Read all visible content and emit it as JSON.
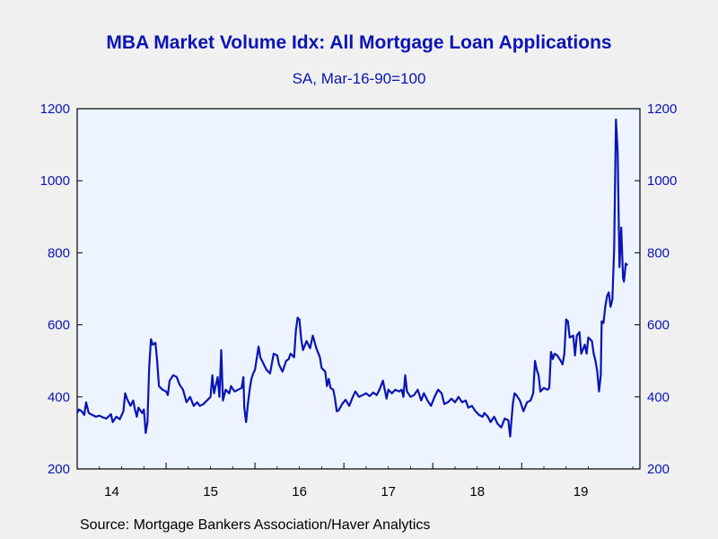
{
  "chart_data": {
    "type": "line",
    "title": "MBA Market Volume Idx: All Mortgage Loan Applications",
    "subtitle": "SA, Mar-16-90=100",
    "source": "Source:  Mortgage Bankers Association/Haver Analytics",
    "ylim": [
      200,
      1200
    ],
    "yticks": [
      200,
      400,
      600,
      800,
      1000,
      1200
    ],
    "ytick_labels": [
      "200",
      "400",
      "600",
      "800",
      "1000",
      "1200"
    ],
    "xlim": [
      2014.0,
      2020.33
    ],
    "year_labels": [
      {
        "label": "14",
        "x": 2014.0
      },
      {
        "label": "15",
        "x": 2015.0
      },
      {
        "label": "16",
        "x": 2016.0
      },
      {
        "label": "17",
        "x": 2017.0
      },
      {
        "label": "18",
        "x": 2018.0
      },
      {
        "label": "19",
        "x": 2019.0
      }
    ],
    "grid": false,
    "line_color": "#0a14b4",
    "series": [
      {
        "values": [
          [
            2014.0,
            355
          ],
          [
            2014.02,
            365
          ],
          [
            2014.05,
            360
          ],
          [
            2014.08,
            350
          ],
          [
            2014.1,
            385
          ],
          [
            2014.13,
            355
          ],
          [
            2014.17,
            350
          ],
          [
            2014.21,
            345
          ],
          [
            2014.25,
            348
          ],
          [
            2014.29,
            343
          ],
          [
            2014.33,
            340
          ],
          [
            2014.38,
            352
          ],
          [
            2014.4,
            330
          ],
          [
            2014.44,
            345
          ],
          [
            2014.48,
            338
          ],
          [
            2014.52,
            360
          ],
          [
            2014.54,
            410
          ],
          [
            2014.56,
            395
          ],
          [
            2014.6,
            375
          ],
          [
            2014.63,
            390
          ],
          [
            2014.65,
            365
          ],
          [
            2014.67,
            345
          ],
          [
            2014.69,
            370
          ],
          [
            2014.73,
            355
          ],
          [
            2014.75,
            365
          ],
          [
            2014.77,
            300
          ],
          [
            2014.79,
            330
          ],
          [
            2014.81,
            480
          ],
          [
            2014.83,
            560
          ],
          [
            2014.85,
            545
          ],
          [
            2014.88,
            550
          ],
          [
            2014.9,
            500
          ],
          [
            2014.92,
            430
          ],
          [
            2014.96,
            420
          ],
          [
            2015.0,
            415
          ],
          [
            2015.02,
            405
          ],
          [
            2015.04,
            445
          ],
          [
            2015.08,
            460
          ],
          [
            2015.12,
            455
          ],
          [
            2015.15,
            435
          ],
          [
            2015.19,
            420
          ],
          [
            2015.23,
            385
          ],
          [
            2015.27,
            400
          ],
          [
            2015.31,
            375
          ],
          [
            2015.35,
            385
          ],
          [
            2015.38,
            375
          ],
          [
            2015.42,
            380
          ],
          [
            2015.46,
            390
          ],
          [
            2015.5,
            400
          ],
          [
            2015.52,
            460
          ],
          [
            2015.54,
            410
          ],
          [
            2015.58,
            455
          ],
          [
            2015.6,
            400
          ],
          [
            2015.62,
            530
          ],
          [
            2015.64,
            390
          ],
          [
            2015.67,
            420
          ],
          [
            2015.71,
            410
          ],
          [
            2015.73,
            430
          ],
          [
            2015.77,
            415
          ],
          [
            2015.81,
            420
          ],
          [
            2015.85,
            425
          ],
          [
            2015.87,
            455
          ],
          [
            2015.88,
            370
          ],
          [
            2015.9,
            330
          ],
          [
            2015.92,
            380
          ],
          [
            2015.94,
            420
          ],
          [
            2015.96,
            450
          ],
          [
            2015.98,
            465
          ],
          [
            2016.0,
            475
          ],
          [
            2016.04,
            540
          ],
          [
            2016.06,
            510
          ],
          [
            2016.1,
            490
          ],
          [
            2016.13,
            475
          ],
          [
            2016.17,
            465
          ],
          [
            2016.21,
            520
          ],
          [
            2016.25,
            515
          ],
          [
            2016.27,
            490
          ],
          [
            2016.31,
            470
          ],
          [
            2016.35,
            500
          ],
          [
            2016.38,
            505
          ],
          [
            2016.4,
            520
          ],
          [
            2016.44,
            510
          ],
          [
            2016.46,
            585
          ],
          [
            2016.48,
            620
          ],
          [
            2016.5,
            615
          ],
          [
            2016.52,
            560
          ],
          [
            2016.54,
            530
          ],
          [
            2016.58,
            555
          ],
          [
            2016.62,
            535
          ],
          [
            2016.65,
            570
          ],
          [
            2016.69,
            535
          ],
          [
            2016.73,
            510
          ],
          [
            2016.75,
            480
          ],
          [
            2016.79,
            470
          ],
          [
            2016.81,
            430
          ],
          [
            2016.83,
            450
          ],
          [
            2016.85,
            425
          ],
          [
            2016.88,
            420
          ],
          [
            2016.9,
            395
          ],
          [
            2016.92,
            360
          ],
          [
            2016.94,
            362
          ],
          [
            2016.98,
            380
          ],
          [
            2017.02,
            392
          ],
          [
            2017.06,
            375
          ],
          [
            2017.1,
            400
          ],
          [
            2017.13,
            415
          ],
          [
            2017.17,
            400
          ],
          [
            2017.21,
            405
          ],
          [
            2017.25,
            410
          ],
          [
            2017.29,
            402
          ],
          [
            2017.33,
            412
          ],
          [
            2017.37,
            405
          ],
          [
            2017.4,
            420
          ],
          [
            2017.44,
            445
          ],
          [
            2017.46,
            420
          ],
          [
            2017.48,
            395
          ],
          [
            2017.5,
            420
          ],
          [
            2017.54,
            410
          ],
          [
            2017.58,
            420
          ],
          [
            2017.62,
            415
          ],
          [
            2017.65,
            420
          ],
          [
            2017.67,
            400
          ],
          [
            2017.69,
            460
          ],
          [
            2017.71,
            415
          ],
          [
            2017.75,
            400
          ],
          [
            2017.79,
            405
          ],
          [
            2017.83,
            420
          ],
          [
            2017.87,
            390
          ],
          [
            2017.9,
            410
          ],
          [
            2017.92,
            400
          ],
          [
            2017.94,
            390
          ],
          [
            2017.98,
            375
          ],
          [
            2018.02,
            400
          ],
          [
            2018.06,
            420
          ],
          [
            2018.1,
            410
          ],
          [
            2018.13,
            380
          ],
          [
            2018.17,
            385
          ],
          [
            2018.21,
            395
          ],
          [
            2018.25,
            385
          ],
          [
            2018.29,
            400
          ],
          [
            2018.33,
            385
          ],
          [
            2018.37,
            390
          ],
          [
            2018.4,
            370
          ],
          [
            2018.44,
            375
          ],
          [
            2018.48,
            360
          ],
          [
            2018.52,
            350
          ],
          [
            2018.56,
            345
          ],
          [
            2018.58,
            355
          ],
          [
            2018.62,
            345
          ],
          [
            2018.65,
            330
          ],
          [
            2018.69,
            345
          ],
          [
            2018.73,
            325
          ],
          [
            2018.77,
            315
          ],
          [
            2018.81,
            340
          ],
          [
            2018.85,
            335
          ],
          [
            2018.87,
            290
          ],
          [
            2018.9,
            380
          ],
          [
            2018.92,
            410
          ],
          [
            2018.94,
            405
          ],
          [
            2018.98,
            390
          ],
          [
            2019.0,
            375
          ],
          [
            2019.02,
            360
          ],
          [
            2019.06,
            385
          ],
          [
            2019.1,
            390
          ],
          [
            2019.13,
            410
          ],
          [
            2019.15,
            500
          ],
          [
            2019.17,
            475
          ],
          [
            2019.19,
            460
          ],
          [
            2019.21,
            415
          ],
          [
            2019.25,
            425
          ],
          [
            2019.29,
            420
          ],
          [
            2019.31,
            425
          ],
          [
            2019.33,
            525
          ],
          [
            2019.35,
            505
          ],
          [
            2019.37,
            520
          ],
          [
            2019.4,
            515
          ],
          [
            2019.44,
            500
          ],
          [
            2019.46,
            490
          ],
          [
            2019.48,
            520
          ],
          [
            2019.5,
            615
          ],
          [
            2019.52,
            610
          ],
          [
            2019.54,
            565
          ],
          [
            2019.58,
            570
          ],
          [
            2019.6,
            515
          ],
          [
            2019.62,
            570
          ],
          [
            2019.65,
            580
          ],
          [
            2019.67,
            520
          ],
          [
            2019.71,
            545
          ],
          [
            2019.73,
            520
          ],
          [
            2019.75,
            565
          ],
          [
            2019.79,
            555
          ],
          [
            2019.81,
            520
          ],
          [
            2019.83,
            500
          ],
          [
            2019.85,
            470
          ],
          [
            2019.87,
            415
          ],
          [
            2019.89,
            460
          ],
          [
            2019.9,
            610
          ],
          [
            2019.92,
            605
          ],
          [
            2019.94,
            650
          ],
          [
            2019.96,
            680
          ],
          [
            2019.98,
            690
          ],
          [
            2020.0,
            650
          ],
          [
            2020.02,
            670
          ],
          [
            2020.04,
            810
          ],
          [
            2020.06,
            1170
          ],
          [
            2020.08,
            1080
          ],
          [
            2020.1,
            760
          ],
          [
            2020.12,
            870
          ],
          [
            2020.14,
            730
          ],
          [
            2020.15,
            720
          ],
          [
            2020.17,
            770
          ],
          [
            2020.19,
            765
          ]
        ]
      }
    ]
  }
}
